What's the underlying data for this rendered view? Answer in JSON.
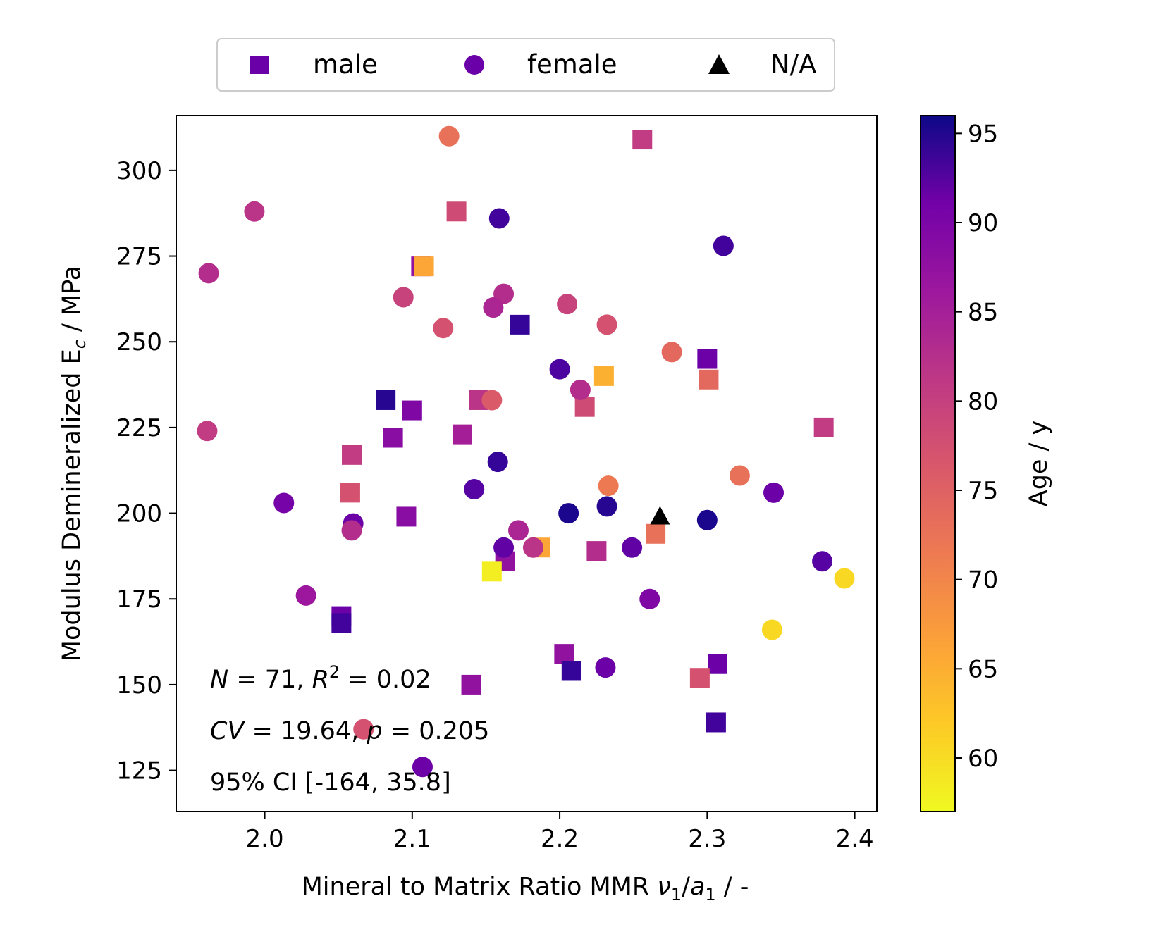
{
  "chart_data": {
    "type": "scatter",
    "title": "",
    "xlabel": "Mineral to Matrix Ratio MMR ν₁/a₁ / -",
    "ylabel": "Modulus Demineralized E_c / MPa",
    "xlim": [
      1.94,
      2.415
    ],
    "ylim": [
      113,
      316
    ],
    "xticks": [
      "2.0",
      "2.1",
      "2.2",
      "2.3",
      "2.4"
    ],
    "yticks": [
      "125",
      "150",
      "175",
      "200",
      "225",
      "250",
      "275",
      "300"
    ],
    "grid": false,
    "legend": {
      "placement": "top-center",
      "entries": [
        {
          "label": "male",
          "marker": "square",
          "color": "#6a00a8"
        },
        {
          "label": "female",
          "marker": "circle",
          "color": "#6a00a8"
        },
        {
          "label": "N/A",
          "marker": "triangle",
          "color": "#000000"
        }
      ]
    },
    "colorbar": {
      "label": "Age / y",
      "range": [
        57,
        96
      ],
      "ticks": [
        "60",
        "65",
        "70",
        "75",
        "80",
        "85",
        "90",
        "95"
      ],
      "colormap": "plasma_r"
    },
    "annotations": {
      "line1": "N = 71, R² = 0.02",
      "line2": "CV = 19.64, p = 0.205",
      "line3": "95% CI [-164, 35.8]"
    },
    "series": [
      {
        "name": "male",
        "marker": "square",
        "points": [
          {
            "x": 2.256,
            "y": 309,
            "age": 78
          },
          {
            "x": 2.13,
            "y": 288,
            "age": 76
          },
          {
            "x": 2.106,
            "y": 272,
            "age": 84
          },
          {
            "x": 2.108,
            "y": 272,
            "age": 65
          },
          {
            "x": 2.173,
            "y": 255,
            "age": 93
          },
          {
            "x": 2.3,
            "y": 245,
            "age": 88
          },
          {
            "x": 2.301,
            "y": 239,
            "age": 72
          },
          {
            "x": 2.23,
            "y": 240,
            "age": 64
          },
          {
            "x": 2.082,
            "y": 233,
            "age": 94
          },
          {
            "x": 2.1,
            "y": 230,
            "age": 86
          },
          {
            "x": 2.145,
            "y": 233,
            "age": 79
          },
          {
            "x": 2.217,
            "y": 231,
            "age": 76
          },
          {
            "x": 2.087,
            "y": 222,
            "age": 85
          },
          {
            "x": 2.134,
            "y": 223,
            "age": 82
          },
          {
            "x": 2.379,
            "y": 225,
            "age": 78
          },
          {
            "x": 2.059,
            "y": 217,
            "age": 78
          },
          {
            "x": 2.058,
            "y": 206,
            "age": 75
          },
          {
            "x": 2.096,
            "y": 199,
            "age": 85
          },
          {
            "x": 2.265,
            "y": 194,
            "age": 71
          },
          {
            "x": 2.187,
            "y": 190,
            "age": 65
          },
          {
            "x": 2.225,
            "y": 189,
            "age": 80
          },
          {
            "x": 2.163,
            "y": 186,
            "age": 84
          },
          {
            "x": 2.154,
            "y": 183,
            "age": 58
          },
          {
            "x": 2.052,
            "y": 170,
            "age": 88
          },
          {
            "x": 2.052,
            "y": 168,
            "age": 92
          },
          {
            "x": 2.203,
            "y": 159,
            "age": 84
          },
          {
            "x": 2.208,
            "y": 154,
            "age": 93
          },
          {
            "x": 2.307,
            "y": 156,
            "age": 88
          },
          {
            "x": 2.295,
            "y": 152,
            "age": 75
          },
          {
            "x": 2.14,
            "y": 150,
            "age": 84
          },
          {
            "x": 2.306,
            "y": 139,
            "age": 92
          }
        ]
      },
      {
        "name": "female",
        "marker": "circle",
        "points": [
          {
            "x": 2.125,
            "y": 310,
            "age": 71
          },
          {
            "x": 1.993,
            "y": 288,
            "age": 79
          },
          {
            "x": 2.159,
            "y": 286,
            "age": 92
          },
          {
            "x": 2.311,
            "y": 278,
            "age": 92
          },
          {
            "x": 1.962,
            "y": 270,
            "age": 80
          },
          {
            "x": 2.094,
            "y": 263,
            "age": 77
          },
          {
            "x": 2.162,
            "y": 264,
            "age": 80
          },
          {
            "x": 2.155,
            "y": 260,
            "age": 81
          },
          {
            "x": 2.205,
            "y": 261,
            "age": 77
          },
          {
            "x": 2.121,
            "y": 254,
            "age": 75
          },
          {
            "x": 2.232,
            "y": 255,
            "age": 75
          },
          {
            "x": 2.276,
            "y": 247,
            "age": 72
          },
          {
            "x": 2.2,
            "y": 242,
            "age": 91
          },
          {
            "x": 2.214,
            "y": 236,
            "age": 80
          },
          {
            "x": 2.154,
            "y": 233,
            "age": 74
          },
          {
            "x": 1.961,
            "y": 224,
            "age": 78
          },
          {
            "x": 2.158,
            "y": 215,
            "age": 93
          },
          {
            "x": 2.322,
            "y": 211,
            "age": 71
          },
          {
            "x": 2.233,
            "y": 208,
            "age": 70
          },
          {
            "x": 2.142,
            "y": 207,
            "age": 90
          },
          {
            "x": 2.345,
            "y": 206,
            "age": 88
          },
          {
            "x": 2.013,
            "y": 203,
            "age": 87
          },
          {
            "x": 2.232,
            "y": 202,
            "age": 94
          },
          {
            "x": 2.206,
            "y": 200,
            "age": 95
          },
          {
            "x": 2.3,
            "y": 198,
            "age": 95
          },
          {
            "x": 2.06,
            "y": 197,
            "age": 88
          },
          {
            "x": 2.059,
            "y": 195,
            "age": 80
          },
          {
            "x": 2.172,
            "y": 195,
            "age": 81
          },
          {
            "x": 2.162,
            "y": 190,
            "age": 89
          },
          {
            "x": 2.182,
            "y": 190,
            "age": 79
          },
          {
            "x": 2.249,
            "y": 190,
            "age": 89
          },
          {
            "x": 2.378,
            "y": 186,
            "age": 90
          },
          {
            "x": 2.393,
            "y": 181,
            "age": 60
          },
          {
            "x": 2.028,
            "y": 176,
            "age": 83
          },
          {
            "x": 2.261,
            "y": 175,
            "age": 86
          },
          {
            "x": 2.344,
            "y": 166,
            "age": 60
          },
          {
            "x": 2.231,
            "y": 155,
            "age": 88
          },
          {
            "x": 2.067,
            "y": 137,
            "age": 75
          },
          {
            "x": 2.107,
            "y": 126,
            "age": 88
          }
        ]
      },
      {
        "name": "N/A",
        "marker": "triangle",
        "points": [
          {
            "x": 2.268,
            "y": 199
          }
        ]
      }
    ]
  }
}
